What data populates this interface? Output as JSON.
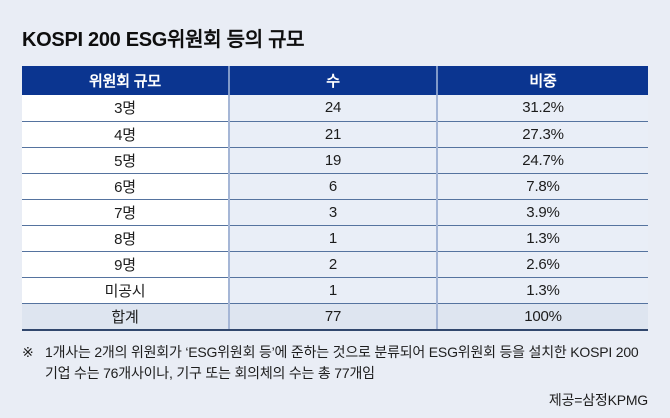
{
  "page": {
    "title": "KOSPI 200 ESG위원회 등의 규모"
  },
  "table": {
    "headers": [
      {
        "label": "위원회 규모"
      },
      {
        "label": "수"
      },
      {
        "label": "비중"
      }
    ],
    "rows": [
      {
        "size": "3명",
        "count": "24",
        "share": "31.2%"
      },
      {
        "size": "4명",
        "count": "21",
        "share": "27.3%"
      },
      {
        "size": "5명",
        "count": "19",
        "share": "24.7%"
      },
      {
        "size": "6명",
        "count": "6",
        "share": "7.8%"
      },
      {
        "size": "7명",
        "count": "3",
        "share": "3.9%"
      },
      {
        "size": "8명",
        "count": "1",
        "share": "1.3%"
      },
      {
        "size": "9명",
        "count": "2",
        "share": "2.6%"
      },
      {
        "size": "미공시",
        "count": "1",
        "share": "1.3%"
      }
    ],
    "total": {
      "size": "합계",
      "count": "77",
      "share": "100%"
    }
  },
  "footnote": {
    "marker": "※",
    "line1": "1개사는 2개의 위원회가 ‘ESG위원회 등’에 준하는 것으로 분류되어 ESG위원회 등을 설치한 KOSPI 200",
    "line2": "기업 수는 76개사이나, 기구 또는 회의체의 수는 총 77개임"
  },
  "credit": "제공=삼정KPMG",
  "colors": {
    "header_bg": "#0b3590",
    "header_text": "#ffffff",
    "page_bg": "#e9edf5",
    "col1_bg": "#ffffff",
    "col_tint_bg": "#e9eef7",
    "total_row_bg": "#dee5f0",
    "row_line": "#55739f",
    "column_divider": "#a5b6d6",
    "table_bottom_border": "#31476d"
  },
  "chart_data": {
    "type": "table",
    "title": "KOSPI 200 ESG위원회 등의 규모",
    "columns": [
      "위원회 규모",
      "수",
      "비중"
    ],
    "rows": [
      [
        "3명",
        24,
        "31.2%"
      ],
      [
        "4명",
        21,
        "27.3%"
      ],
      [
        "5명",
        19,
        "24.7%"
      ],
      [
        "6명",
        6,
        "7.8%"
      ],
      [
        "7명",
        3,
        "3.9%"
      ],
      [
        "8명",
        1,
        "1.3%"
      ],
      [
        "9명",
        2,
        "2.6%"
      ],
      [
        "미공시",
        1,
        "1.3%"
      ],
      [
        "합계",
        77,
        "100%"
      ]
    ],
    "source": "삼정KPMG"
  }
}
